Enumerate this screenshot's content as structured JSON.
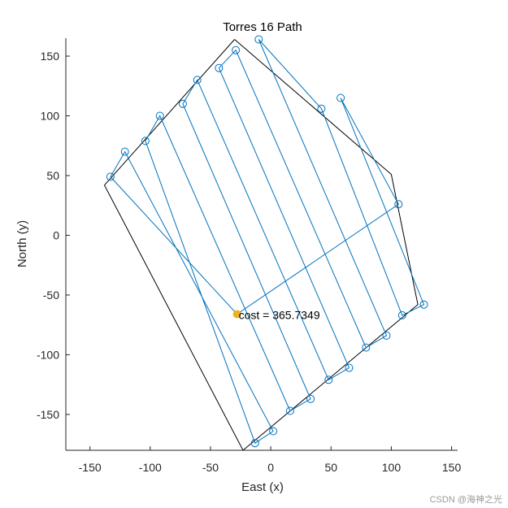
{
  "chart_data": {
    "type": "line",
    "title": "Torres 16 Path",
    "xlabel": "East (x)",
    "ylabel": "North (y)",
    "xlim": [
      -170,
      155
    ],
    "ylim": [
      -180,
      165
    ],
    "xticks": [
      -150,
      -100,
      -50,
      0,
      50,
      100,
      150
    ],
    "yticks": [
      -150,
      -100,
      -50,
      0,
      50,
      100,
      150
    ],
    "grid": false,
    "colors": {
      "path": "#0072bd",
      "boundary": "#000000",
      "start": "#edb120",
      "axis": "#262626"
    },
    "boundary": {
      "x": [
        -30,
        -138,
        -23,
        122,
        100,
        -30
      ],
      "y": [
        164,
        42,
        -180,
        -58,
        51,
        164
      ]
    },
    "waypoints": {
      "x": [
        -133,
        -121,
        -104,
        -92,
        -73,
        -61,
        -43,
        -29,
        -10,
        42,
        58,
        106,
        127,
        109,
        96,
        79,
        65,
        48,
        33,
        16,
        2,
        -13
      ],
      "y": [
        49,
        70,
        79,
        100,
        110,
        130,
        140,
        155,
        164,
        106,
        115,
        26,
        -58,
        -67,
        -84,
        -94,
        -111,
        -121,
        -137,
        -147,
        -164,
        -174
      ]
    },
    "path": {
      "x": [
        -28,
        -133,
        -121,
        2,
        -13,
        -104,
        -92,
        16,
        33,
        -73,
        -61,
        48,
        65,
        -43,
        -29,
        79,
        96,
        -10,
        42,
        109,
        127,
        58,
        106,
        -28
      ],
      "y": [
        -66,
        49,
        70,
        -164,
        -174,
        79,
        100,
        -147,
        -137,
        110,
        130,
        -121,
        -111,
        140,
        155,
        -94,
        -84,
        164,
        106,
        -67,
        -58,
        115,
        26,
        -66
      ]
    },
    "start": {
      "x": -28,
      "y": -66
    },
    "annotation": {
      "text": "cost = 365.7349",
      "x": -28,
      "y": -66
    }
  },
  "watermark": "CSDN @海神之光"
}
